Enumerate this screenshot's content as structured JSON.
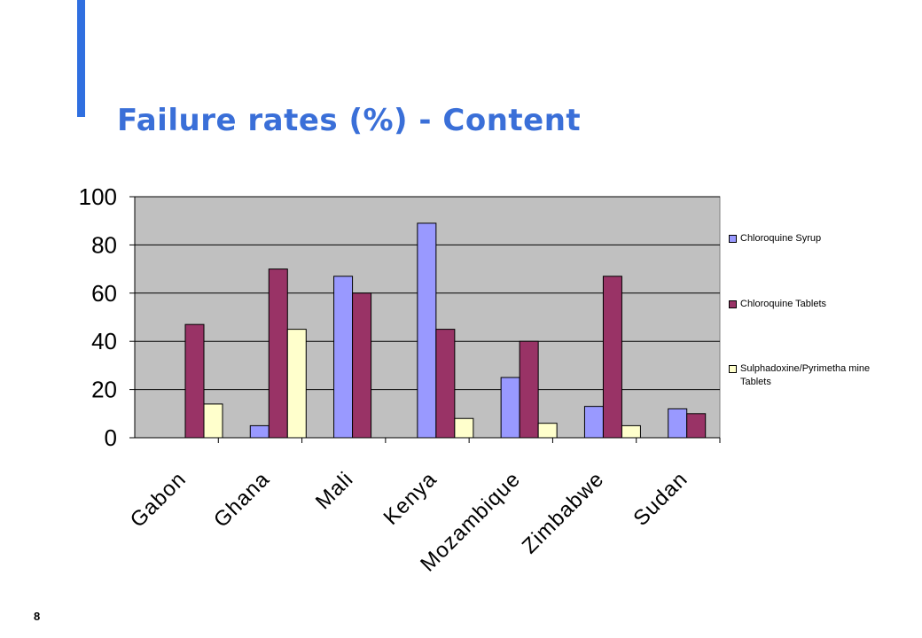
{
  "slide": {
    "title": "Failure rates (%) - Content",
    "page_number": "8",
    "title_color": "#3a6fd8",
    "accent_bar_color": "#2f6fe0"
  },
  "chart_data": {
    "type": "bar",
    "title": "",
    "xlabel": "",
    "ylabel": "",
    "ylim": [
      0,
      100
    ],
    "yticks": [
      0,
      20,
      40,
      60,
      80,
      100
    ],
    "grid": true,
    "legend_position": "right",
    "plot_background": "#c0c0c0",
    "categories": [
      "Gabon",
      "Ghana",
      "Mali",
      "Kenya",
      "Mozambique",
      "Zimbabwe",
      "Sudan"
    ],
    "series": [
      {
        "name": "Chloroquine Syrup",
        "color": "#9999ff",
        "values": [
          null,
          5,
          67,
          89,
          25,
          13,
          12
        ]
      },
      {
        "name": "Chloroquine Tablets",
        "color": "#993366",
        "values": [
          47,
          70,
          60,
          45,
          40,
          67,
          10
        ]
      },
      {
        "name": "Sulphadoxine/Pyrimetha mine Tablets",
        "color": "#ffffcc",
        "values": [
          14,
          45,
          null,
          8,
          6,
          5,
          null
        ]
      }
    ]
  }
}
